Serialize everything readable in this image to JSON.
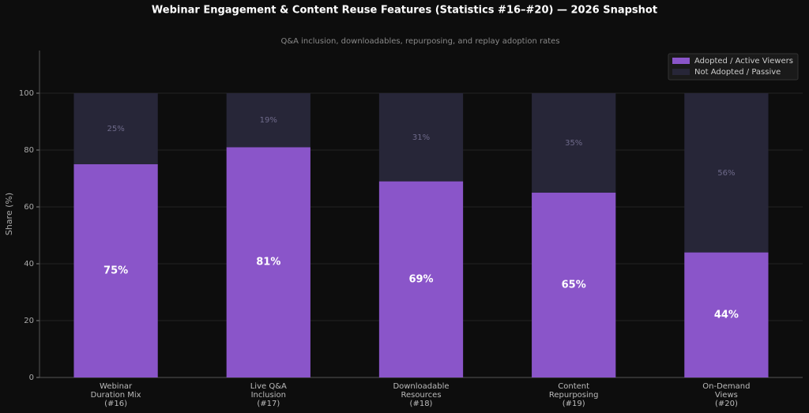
{
  "chart_data": {
    "type": "stacked_bar",
    "title": "Webinar Engagement & Content Reuse Features (Statistics #16–#20) — 2026 Snapshot",
    "subtitle": "Q&A inclusion, downloadables, repurposing, and replay adoption rates",
    "y_label": "Share (%)",
    "categories": [
      "Webinar\nDuration Mix\n(#16)",
      "Live Q&A\nInclusion\n(#17)",
      "Downloadable\nResources\n(#18)",
      "Content\nRepurposing\n(#19)",
      "On-Demand\nViews\n(#20)"
    ],
    "series": [
      {
        "name": "Adopted / Active Viewers",
        "color": "#8a55c9",
        "values": [
          75,
          81,
          69,
          65,
          44
        ],
        "value_labels": [
          "75%",
          "81%",
          "69%",
          "65%",
          "44%"
        ]
      },
      {
        "name": "Not Adopted / Passive",
        "color": "#272638",
        "values": [
          25,
          19,
          31,
          35,
          56
        ],
        "value_labels": [
          "25%",
          "19%",
          "31%",
          "35%",
          "56%"
        ]
      }
    ],
    "ylim": [
      0,
      115
    ],
    "yticks": [
      0,
      20,
      40,
      60,
      80,
      100
    ],
    "grid": true,
    "legend": "upper right"
  }
}
